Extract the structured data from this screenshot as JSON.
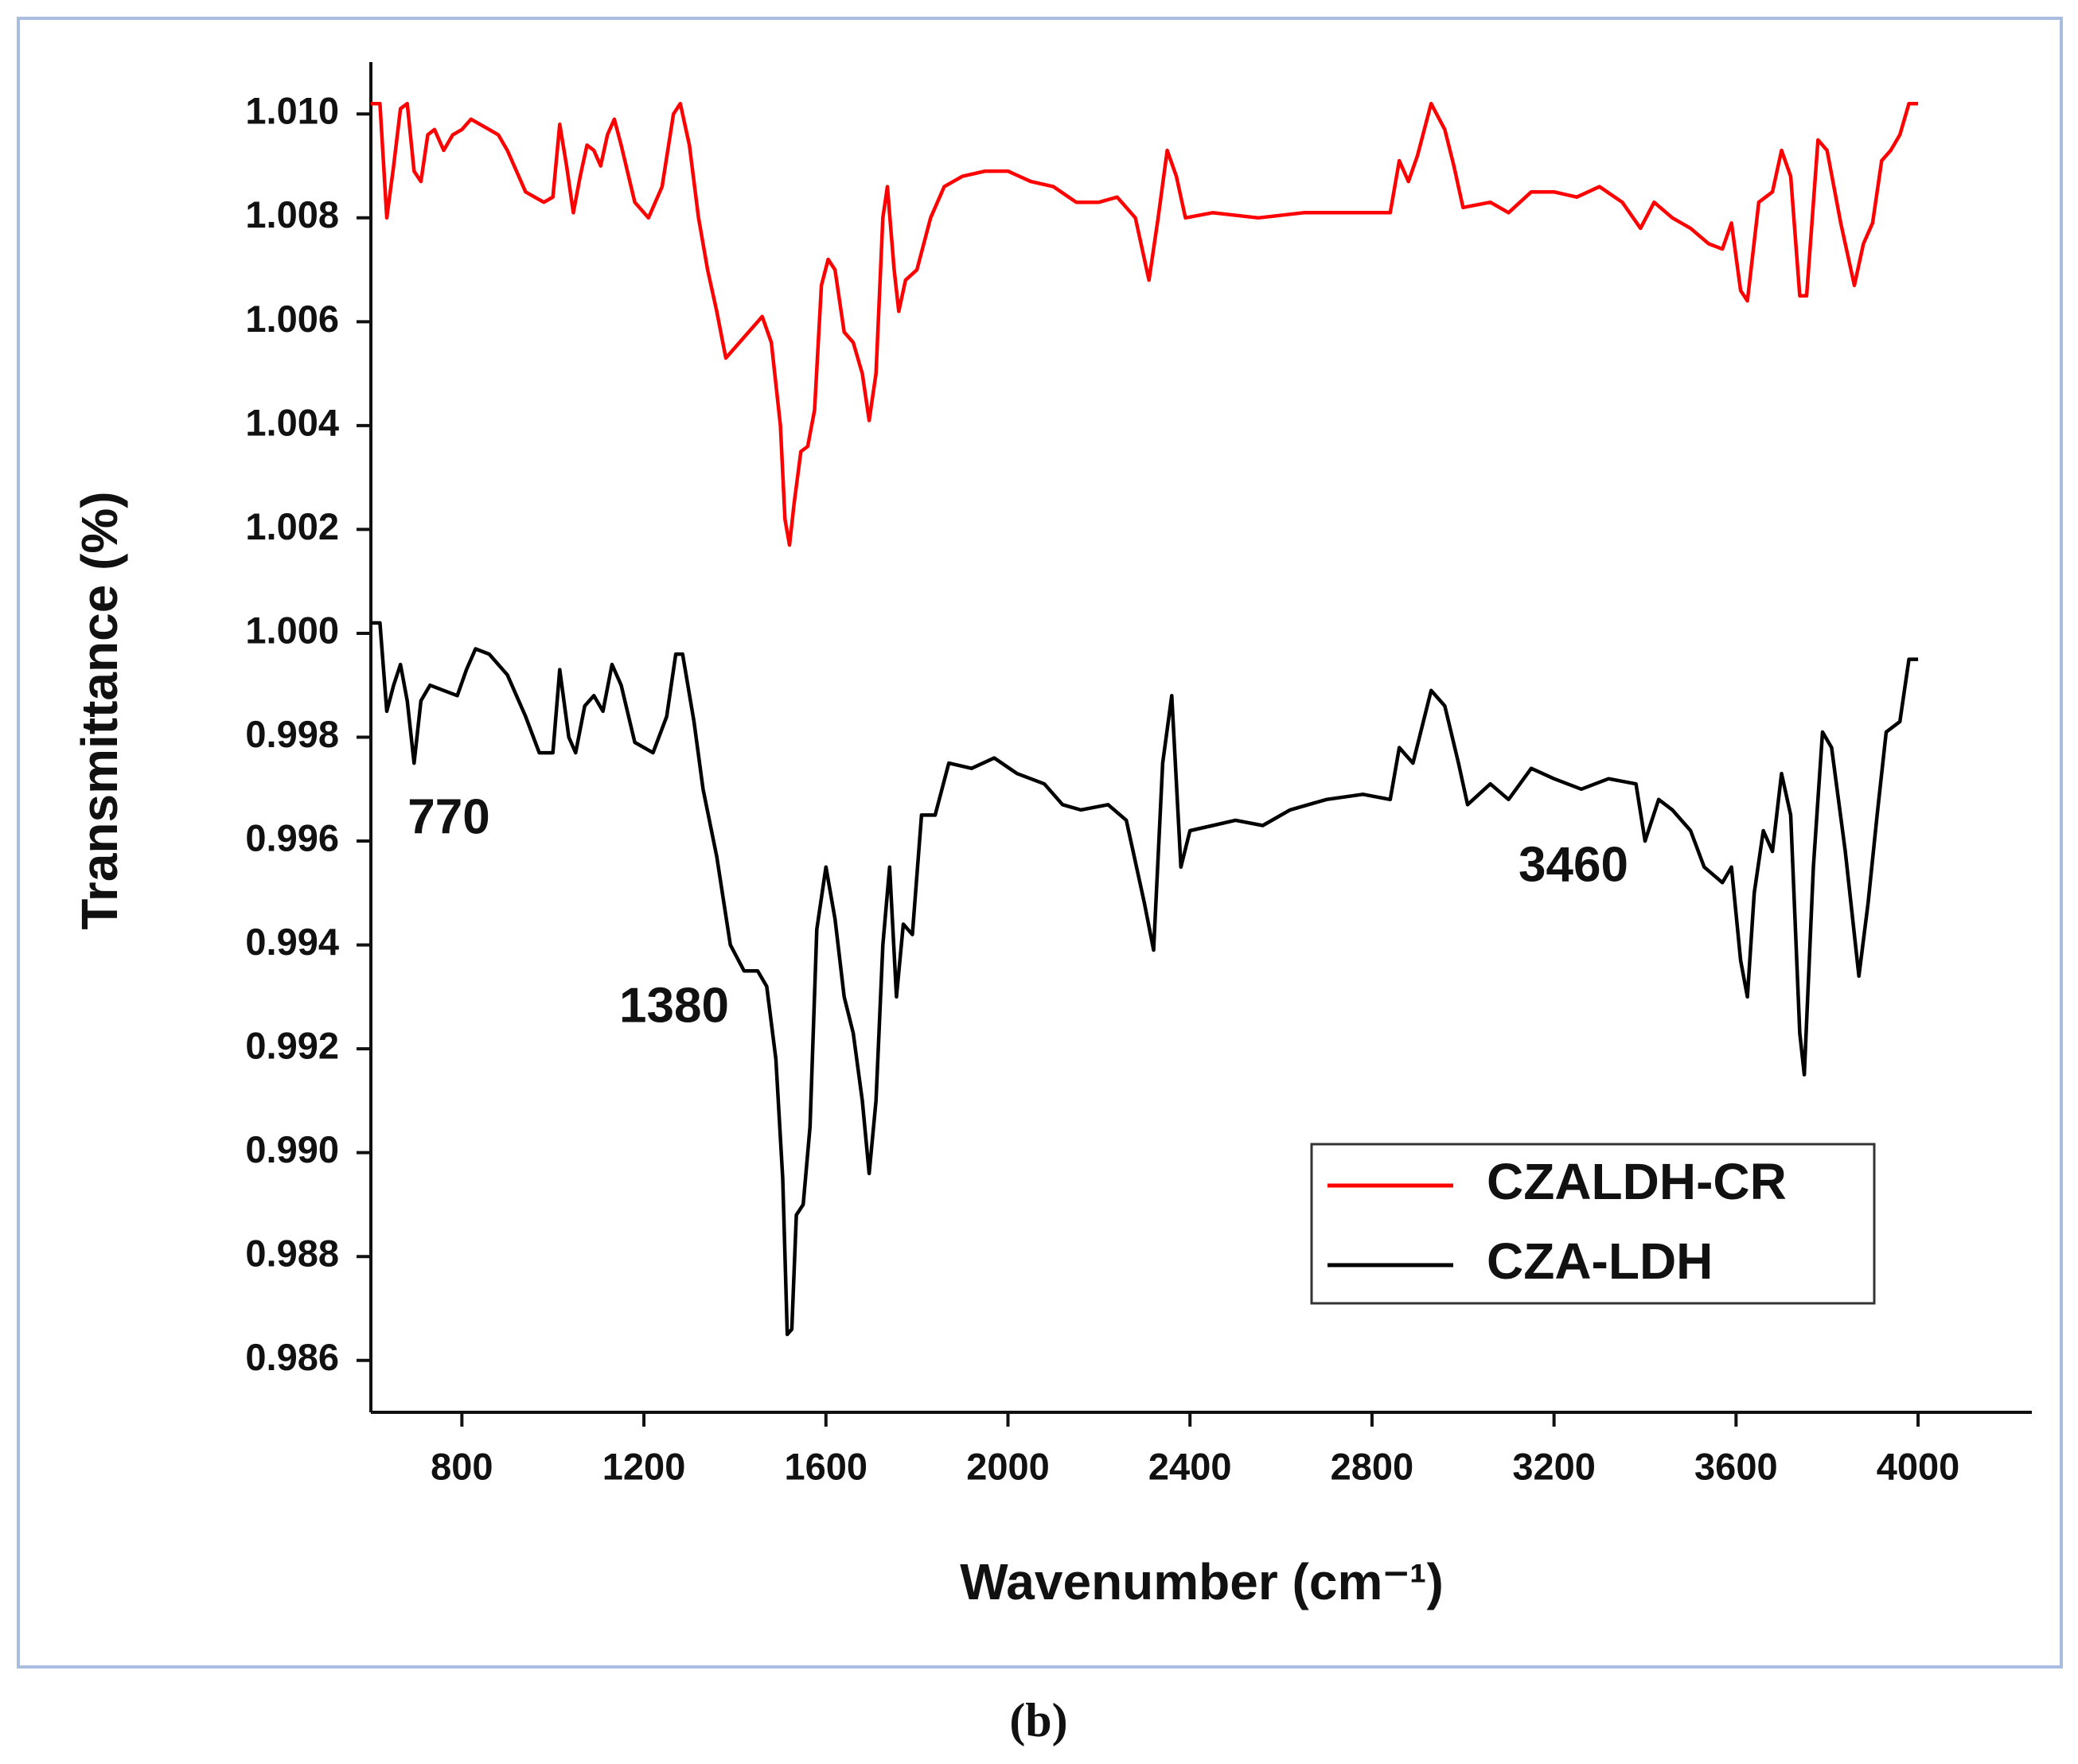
{
  "chart_data": {
    "type": "line",
    "caption": "(b)",
    "x_label": "Wavenumber (cm⁻¹)",
    "y_label": "Transmittance (%)",
    "xlim": [
      600,
      4250
    ],
    "ylim": [
      0.985,
      1.011
    ],
    "xticks": [
      800,
      1200,
      1600,
      2000,
      2400,
      2800,
      3200,
      3600,
      4000
    ],
    "yticks": [
      {
        "value": 1.01,
        "label": "1.010"
      },
      1.008,
      1.006,
      1.004,
      1.002,
      {
        "value": 1.0,
        "label": "1.000"
      },
      0.998,
      0.996,
      0.994,
      0.992,
      {
        "value": 0.99,
        "label": "0.990"
      },
      0.988,
      0.986
    ],
    "legend": "lower right",
    "annotations": [
      "770",
      "1380",
      "3460"
    ],
    "series": [
      {
        "name": "CZALDH-CR",
        "color": "#ff0000",
        "x": [
          600,
          620,
          635,
          650,
          665,
          680,
          695,
          710,
          725,
          740,
          760,
          780,
          800,
          820,
          840,
          860,
          880,
          900,
          920,
          940,
          960,
          980,
          1000,
          1015,
          1030,
          1045,
          1060,
          1075,
          1090,
          1105,
          1120,
          1135,
          1150,
          1180,
          1210,
          1240,
          1265,
          1280,
          1300,
          1320,
          1340,
          1360,
          1380,
          1400,
          1420,
          1440,
          1460,
          1480,
          1500,
          1510,
          1520,
          1530,
          1545,
          1560,
          1575,
          1590,
          1605,
          1620,
          1640,
          1660,
          1680,
          1695,
          1710,
          1725,
          1735,
          1750,
          1760,
          1775,
          1800,
          1830,
          1860,
          1900,
          1950,
          2000,
          2050,
          2100,
          2150,
          2200,
          2240,
          2280,
          2310,
          2330,
          2350,
          2370,
          2390,
          2450,
          2550,
          2650,
          2750,
          2840,
          2860,
          2880,
          2900,
          2930,
          2960,
          2980,
          3000,
          3060,
          3100,
          3150,
          3200,
          3250,
          3300,
          3350,
          3390,
          3420,
          3460,
          3500,
          3540,
          3570,
          3590,
          3610,
          3625,
          3650,
          3680,
          3700,
          3720,
          3740,
          3755,
          3780,
          3800,
          3830,
          3860,
          3880,
          3900,
          3920,
          3940,
          3960,
          3980,
          4000
        ],
        "values": [
          1.0102,
          1.0102,
          1.008,
          1.009,
          1.0101,
          1.0102,
          1.0089,
          1.0087,
          1.0096,
          1.0097,
          1.0093,
          1.0096,
          1.0097,
          1.0099,
          1.0098,
          1.0097,
          1.0096,
          1.0093,
          1.0089,
          1.0085,
          1.0084,
          1.0083,
          1.0084,
          1.0098,
          1.009,
          1.0081,
          1.0088,
          1.0094,
          1.0093,
          1.009,
          1.0096,
          1.0099,
          1.0094,
          1.0083,
          1.008,
          1.0086,
          1.01,
          1.0102,
          1.0094,
          1.008,
          1.007,
          1.0062,
          1.0053,
          1.0055,
          1.0057,
          1.0059,
          1.0061,
          1.0056,
          1.004,
          1.0022,
          1.0017,
          1.0025,
          1.0035,
          1.0036,
          1.0043,
          1.0067,
          1.0072,
          1.007,
          1.0058,
          1.0056,
          1.005,
          1.0041,
          1.005,
          1.008,
          1.0086,
          1.007,
          1.0062,
          1.0068,
          1.007,
          1.008,
          1.0086,
          1.0088,
          1.0089,
          1.0089,
          1.0087,
          1.0086,
          1.0083,
          1.0083,
          1.0084,
          1.008,
          1.0068,
          1.008,
          1.0093,
          1.0088,
          1.008,
          1.0081,
          1.008,
          1.0081,
          1.0081,
          1.0081,
          1.0091,
          1.0087,
          1.0092,
          1.0102,
          1.0097,
          1.009,
          1.0082,
          1.0083,
          1.0081,
          1.0085,
          1.0085,
          1.0084,
          1.0086,
          1.0083,
          1.0078,
          1.0083,
          1.008,
          1.0078,
          1.0075,
          1.0074,
          1.0079,
          1.0066,
          1.0064,
          1.0083,
          1.0085,
          1.0093,
          1.0088,
          1.0065,
          1.0065,
          1.0095,
          1.0093,
          1.0079,
          1.0067,
          1.0075,
          1.0079,
          1.0091,
          1.0093,
          1.0096,
          1.0102,
          1.0102
        ]
      },
      {
        "name": "CZA-LDH",
        "color": "#000000",
        "x": [
          600,
          620,
          635,
          650,
          665,
          680,
          695,
          710,
          730,
          760,
          790,
          810,
          830,
          860,
          900,
          940,
          970,
          1000,
          1015,
          1035,
          1050,
          1070,
          1090,
          1110,
          1130,
          1150,
          1180,
          1220,
          1250,
          1270,
          1285,
          1310,
          1330,
          1360,
          1390,
          1420,
          1450,
          1470,
          1490,
          1505,
          1515,
          1525,
          1535,
          1550,
          1565,
          1580,
          1600,
          1620,
          1640,
          1660,
          1680,
          1695,
          1710,
          1725,
          1740,
          1755,
          1770,
          1790,
          1810,
          1840,
          1870,
          1920,
          1970,
          2020,
          2080,
          2120,
          2160,
          2220,
          2260,
          2300,
          2320,
          2340,
          2360,
          2380,
          2400,
          2450,
          2500,
          2560,
          2620,
          2700,
          2780,
          2840,
          2860,
          2890,
          2930,
          2960,
          2990,
          3010,
          3060,
          3100,
          3150,
          3200,
          3260,
          3320,
          3380,
          3400,
          3430,
          3460,
          3500,
          3530,
          3570,
          3590,
          3610,
          3625,
          3640,
          3660,
          3680,
          3700,
          3720,
          3740,
          3750,
          3770,
          3790,
          3810,
          3840,
          3870,
          3890,
          3910,
          3930,
          3960,
          3980,
          4000
        ],
        "values": [
          1.0002,
          1.0002,
          0.9985,
          0.999,
          0.9994,
          0.9987,
          0.9975,
          0.9987,
          0.999,
          0.9989,
          0.9988,
          0.9993,
          0.9997,
          0.9996,
          0.9992,
          0.9984,
          0.9977,
          0.9977,
          0.9993,
          0.998,
          0.9977,
          0.9986,
          0.9988,
          0.9985,
          0.9994,
          0.999,
          0.9979,
          0.9977,
          0.9984,
          0.9996,
          0.9996,
          0.9983,
          0.997,
          0.9957,
          0.994,
          0.9935,
          0.9935,
          0.9932,
          0.9918,
          0.9895,
          0.9865,
          0.9866,
          0.9888,
          0.989,
          0.9905,
          0.9943,
          0.9955,
          0.9945,
          0.993,
          0.9923,
          0.991,
          0.9896,
          0.991,
          0.994,
          0.9955,
          0.993,
          0.9944,
          0.9942,
          0.9965,
          0.9965,
          0.9975,
          0.9974,
          0.9976,
          0.9973,
          0.9971,
          0.9967,
          0.9966,
          0.9967,
          0.9964,
          0.9948,
          0.9939,
          0.9975,
          0.9988,
          0.9955,
          0.9962,
          0.9963,
          0.9964,
          0.9963,
          0.9966,
          0.9968,
          0.9969,
          0.9968,
          0.9978,
          0.9975,
          0.9989,
          0.9986,
          0.9975,
          0.9967,
          0.9971,
          0.9968,
          0.9974,
          0.9972,
          0.997,
          0.9972,
          0.9971,
          0.996,
          0.9968,
          0.9966,
          0.9962,
          0.9955,
          0.9952,
          0.9955,
          0.9937,
          0.993,
          0.995,
          0.9962,
          0.9958,
          0.9973,
          0.9965,
          0.9923,
          0.9915,
          0.9955,
          0.9981,
          0.9978,
          0.9958,
          0.9934,
          0.9948,
          0.9965,
          0.9981,
          0.9983,
          0.9995,
          0.9995
        ]
      }
    ]
  }
}
